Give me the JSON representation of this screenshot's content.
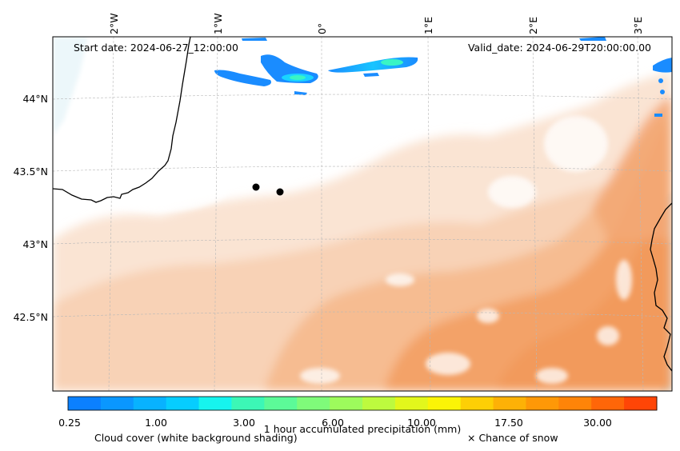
{
  "header": {
    "start_date": "Start date: 2024-06-27_12:00:00",
    "valid_date": "Valid_date: 2024-06-29T20:00:00.00"
  },
  "axes": {
    "lon_labels": [
      "2°W",
      "1°W",
      "0°",
      "1°E",
      "2°E",
      "3°E"
    ],
    "lat_labels": [
      "44°N",
      "43.5°N",
      "43°N",
      "42.5°N"
    ]
  },
  "markers": [
    {
      "name": "point-1"
    },
    {
      "name": "point-2"
    }
  ],
  "colorbar": {
    "title": "1 hour accumulated precipitation (mm)",
    "ticks": [
      "0.25",
      "1.00",
      "3.00",
      "6.00",
      "10.00",
      "17.50",
      "30.00"
    ],
    "colors": [
      "#0b80ff",
      "#0a97ff",
      "#08b2ff",
      "#06cdff",
      "#16f4ee",
      "#3cf7b6",
      "#5cfa98",
      "#7ffb7a",
      "#9dfb5c",
      "#bdfa3e",
      "#e2f71c",
      "#fbf406",
      "#fdcf05",
      "#fdb106",
      "#fe9807",
      "#fe8408",
      "#ff6608",
      "#ff4506"
    ]
  },
  "legend": {
    "cloud_cover": "Cloud cover (white background shading)",
    "snow": "× Chance of snow"
  },
  "colors": {
    "precip_light": "#f8d6bd",
    "precip_mid": "#f4b283",
    "precip_heavy": "#f19a5b",
    "cloud_blue": "#1a8cff",
    "cloud_cyan": "#19e6e6",
    "sea_tint": "#d8f0f6"
  }
}
